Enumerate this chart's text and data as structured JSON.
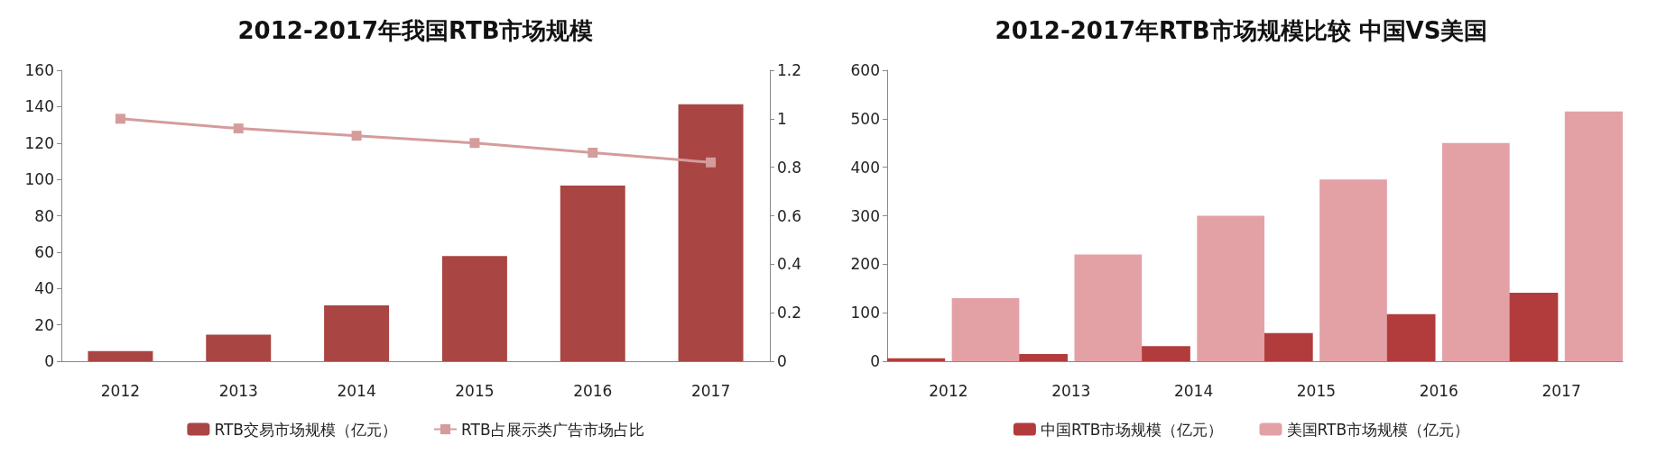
{
  "chart_data": [
    {
      "type": "bar",
      "title": "2012-2017年我国RTB市场规模",
      "categories": [
        "2012",
        "2013",
        "2014",
        "2015",
        "2016",
        "2017"
      ],
      "series": [
        {
          "name": "RTB交易市场规模（亿元）",
          "color": "#a94543",
          "values": [
            5.6,
            14.6,
            30.7,
            57.8,
            96.6,
            141.3
          ]
        },
        {
          "name": "RTB占展示类广告市场占比",
          "type": "line",
          "axis": "y2",
          "color": "#d59c9c",
          "values": [
            1.0,
            0.96,
            0.93,
            0.9,
            0.86,
            0.82
          ]
        }
      ],
      "ylim": [
        0,
        160
      ],
      "yticks": [
        0,
        20,
        40,
        60,
        80,
        100,
        120,
        140,
        160
      ],
      "y2lim": [
        0,
        1.2
      ],
      "y2ticks": [
        0,
        0.2,
        0.4,
        0.6,
        0.8,
        1,
        1.2
      ],
      "marker": "square",
      "legend": "bottom"
    },
    {
      "type": "bar",
      "title": "2012-2017年RTB市场规模比较 中国VS美国",
      "categories": [
        "2012",
        "2013",
        "2014",
        "2015",
        "2016",
        "2017"
      ],
      "series": [
        {
          "name": "中国RTB市场规模（亿元）",
          "color": "#b23c3c",
          "values": [
            6,
            15,
            31,
            58,
            97,
            141
          ]
        },
        {
          "name": "美国RTB市场规模（亿元）",
          "color": "#e3a1a6",
          "values": [
            130,
            220,
            300,
            375,
            450,
            515
          ]
        }
      ],
      "ylim": [
        0,
        600
      ],
      "yticks": [
        0,
        100,
        200,
        300,
        400,
        500,
        600
      ],
      "legend": "bottom"
    }
  ]
}
